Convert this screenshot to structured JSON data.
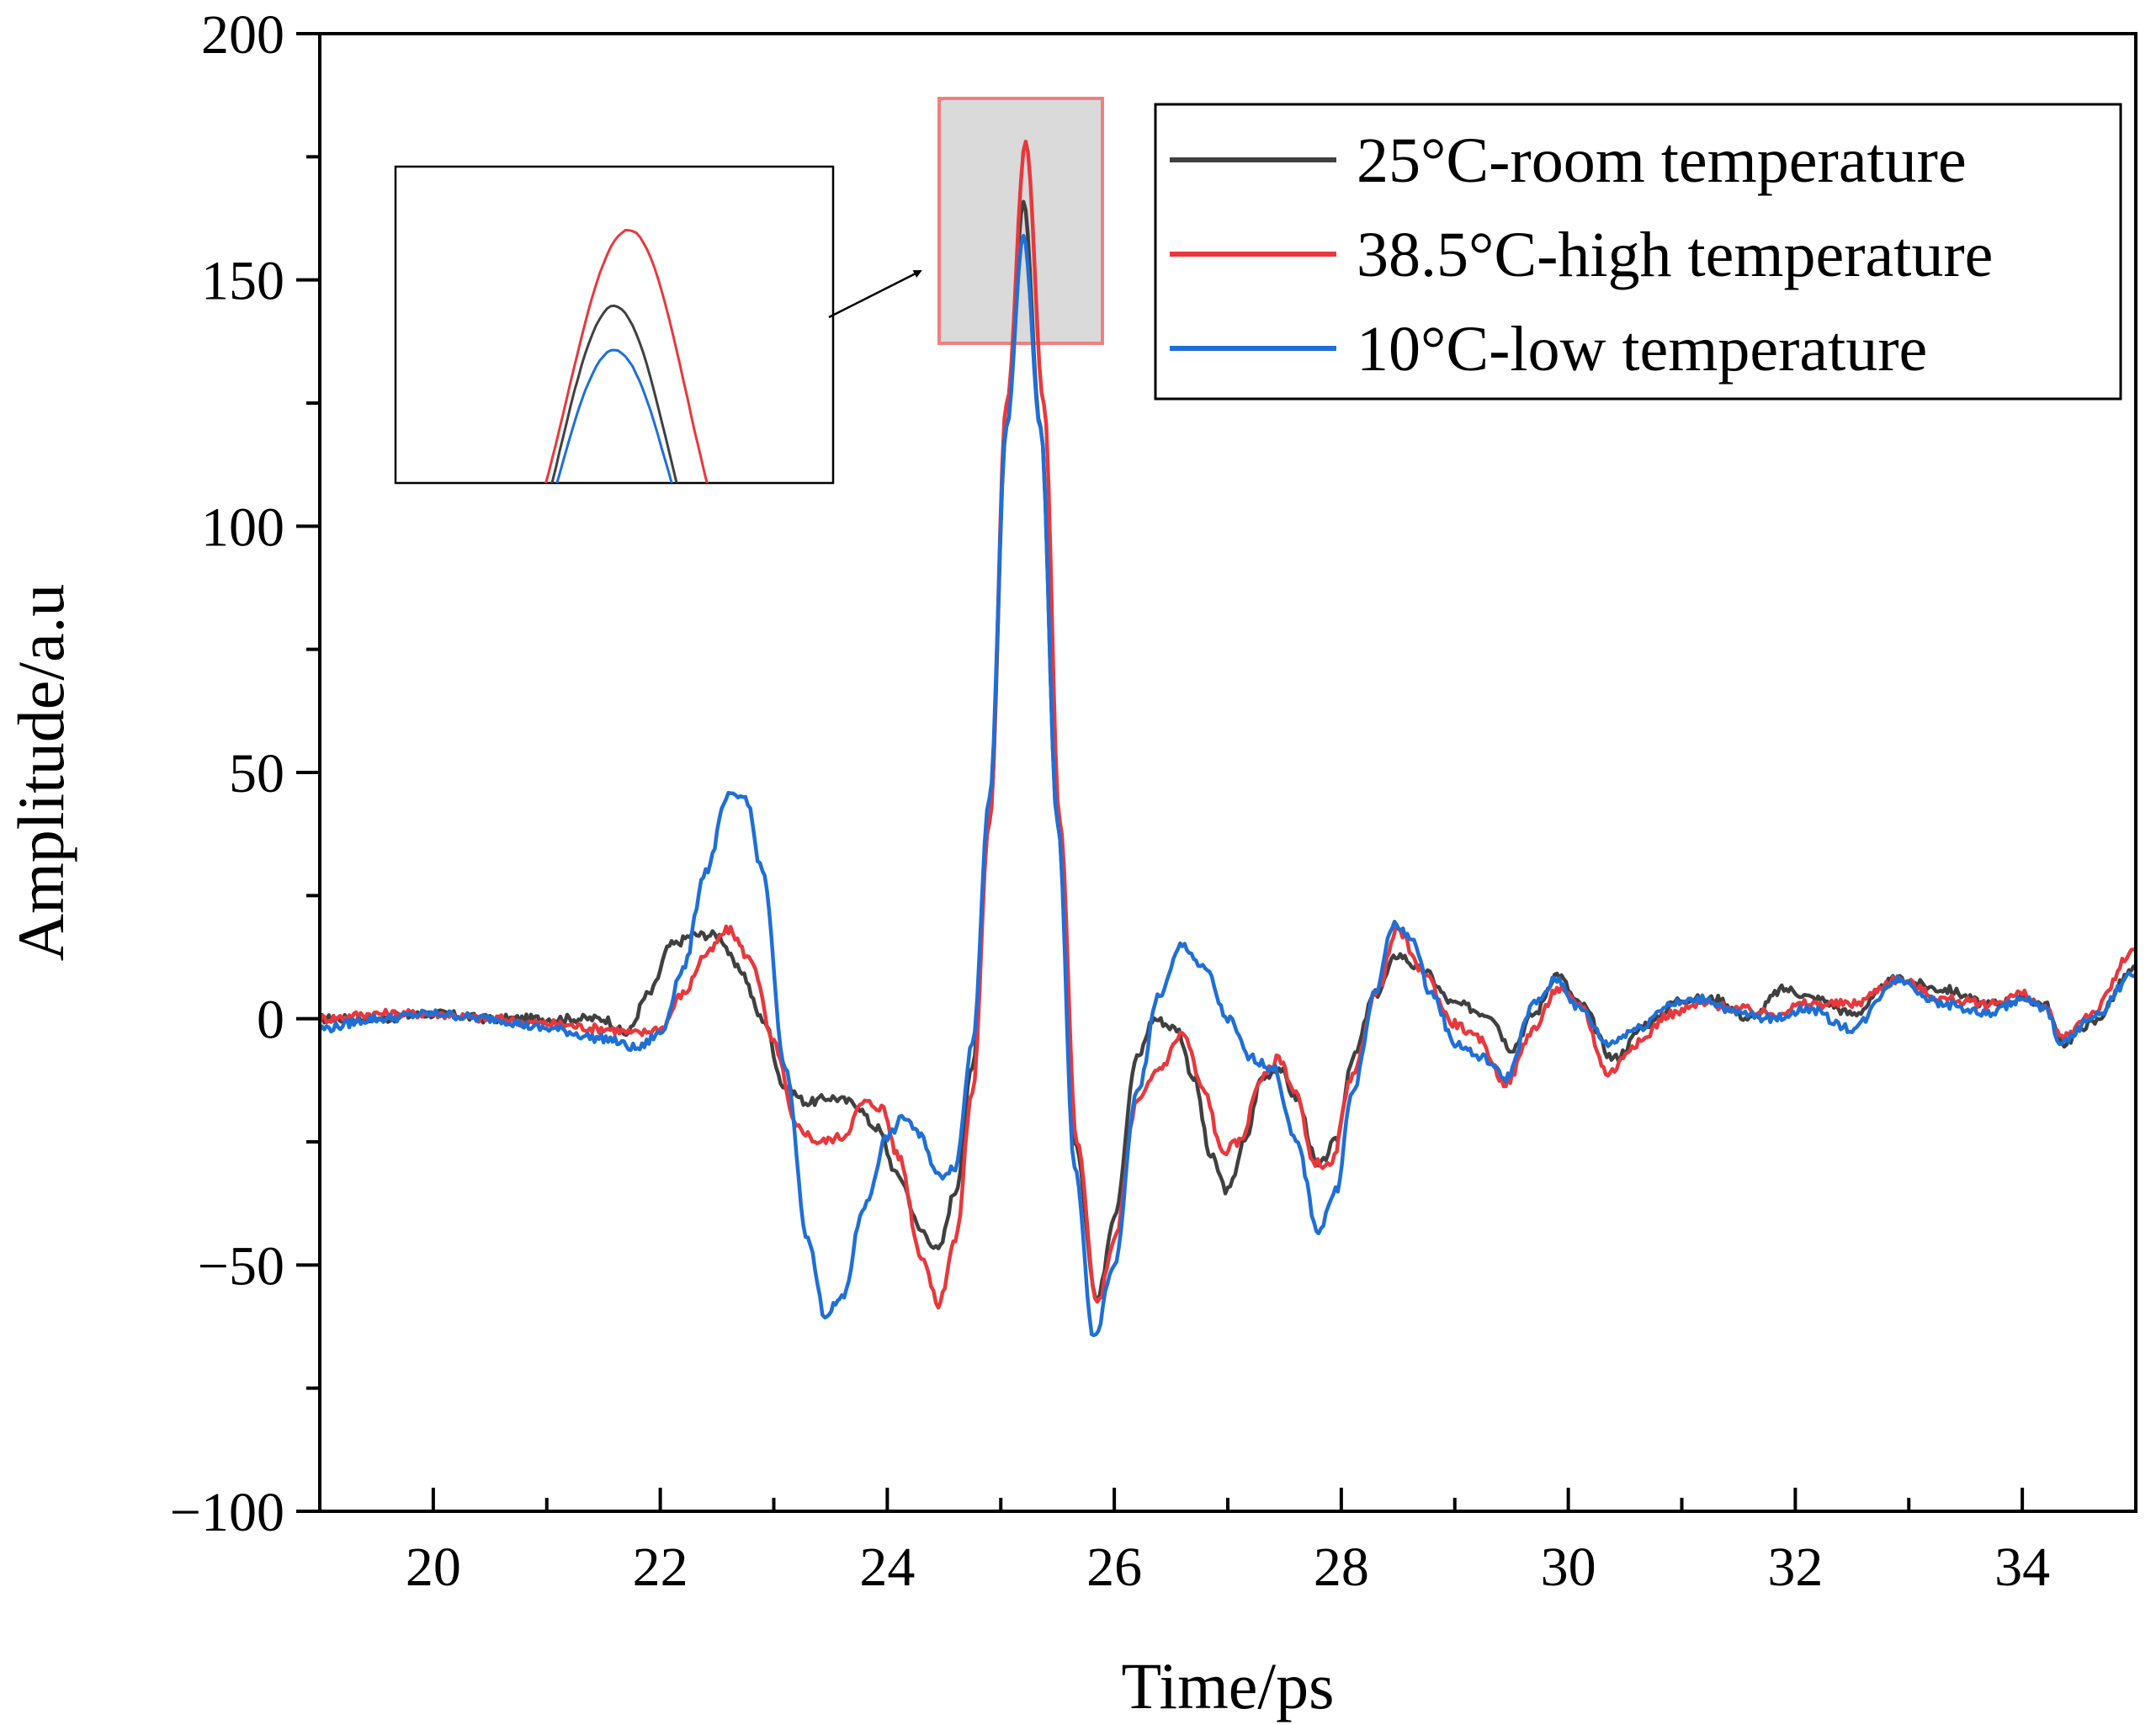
{
  "chart_data": {
    "type": "line",
    "title": "",
    "xlabel": "Time/ps",
    "ylabel": "Amplitude/a.u",
    "xlim": [
      19,
      35
    ],
    "ylim": [
      -100,
      200
    ],
    "x_major_ticks": [
      20,
      22,
      24,
      26,
      28,
      30,
      32,
      34
    ],
    "y_major_ticks": [
      -100,
      -50,
      0,
      50,
      100,
      150,
      200
    ],
    "x_tick_labels": [
      "20",
      "22",
      "24",
      "26",
      "28",
      "30",
      "32",
      "34"
    ],
    "y_tick_labels": [
      "−100",
      "−50",
      "0",
      "50",
      "100",
      "150",
      "200"
    ],
    "grid": false,
    "legend_position": "top-right",
    "series": [
      {
        "name": "25°C-room temperature",
        "color": "#404040",
        "points": [
          [
            19,
            0
          ],
          [
            19.5,
            0
          ],
          [
            20,
            1
          ],
          [
            20.5,
            0
          ],
          [
            21,
            0
          ],
          [
            21.5,
            0
          ],
          [
            21.7,
            -3
          ],
          [
            21.9,
            5
          ],
          [
            22.1,
            15
          ],
          [
            22.3,
            17
          ],
          [
            22.5,
            17
          ],
          [
            22.7,
            10
          ],
          [
            22.9,
            0
          ],
          [
            23.1,
            -14
          ],
          [
            23.3,
            -17
          ],
          [
            23.5,
            -16
          ],
          [
            23.7,
            -17
          ],
          [
            23.9,
            -22
          ],
          [
            24.1,
            -32
          ],
          [
            24.3,
            -43
          ],
          [
            24.45,
            -47
          ],
          [
            24.6,
            -35
          ],
          [
            24.75,
            -10
          ],
          [
            24.9,
            40
          ],
          [
            25.05,
            120
          ],
          [
            25.2,
            166
          ],
          [
            25.35,
            120
          ],
          [
            25.5,
            40
          ],
          [
            25.65,
            -25
          ],
          [
            25.85,
            -57
          ],
          [
            26.0,
            -40
          ],
          [
            26.2,
            -8
          ],
          [
            26.35,
            0
          ],
          [
            26.55,
            -2
          ],
          [
            26.7,
            -12
          ],
          [
            26.85,
            -28
          ],
          [
            27.0,
            -35
          ],
          [
            27.15,
            -25
          ],
          [
            27.3,
            -12
          ],
          [
            27.45,
            -10
          ],
          [
            27.6,
            -16
          ],
          [
            27.8,
            -30
          ],
          [
            27.95,
            -25
          ],
          [
            28.1,
            -8
          ],
          [
            28.3,
            5
          ],
          [
            28.5,
            13
          ],
          [
            28.7,
            10
          ],
          [
            29.0,
            3
          ],
          [
            29.3,
            1
          ],
          [
            29.5,
            -6
          ],
          [
            29.7,
            1
          ],
          [
            29.9,
            9
          ],
          [
            30.1,
            3
          ],
          [
            30.4,
            -8
          ],
          [
            30.7,
            -1
          ],
          [
            31.0,
            4
          ],
          [
            31.3,
            4
          ],
          [
            31.6,
            0
          ],
          [
            31.9,
            6
          ],
          [
            32.2,
            4
          ],
          [
            32.5,
            1
          ],
          [
            32.9,
            8
          ],
          [
            33.3,
            6
          ],
          [
            33.7,
            3
          ],
          [
            34.0,
            4
          ],
          [
            34.2,
            3
          ],
          [
            34.35,
            -5
          ],
          [
            34.6,
            -1
          ],
          [
            35,
            10
          ]
        ]
      },
      {
        "name": "38.5°C-high temperature",
        "color": "#e8383d",
        "points": [
          [
            19,
            0
          ],
          [
            19.5,
            1
          ],
          [
            20,
            1
          ],
          [
            20.5,
            0
          ],
          [
            21,
            -1
          ],
          [
            21.5,
            -2
          ],
          [
            21.8,
            -3
          ],
          [
            22.0,
            -2
          ],
          [
            22.2,
            5
          ],
          [
            22.4,
            13
          ],
          [
            22.6,
            18
          ],
          [
            22.8,
            12
          ],
          [
            23.0,
            -5
          ],
          [
            23.2,
            -22
          ],
          [
            23.4,
            -25
          ],
          [
            23.6,
            -24
          ],
          [
            23.8,
            -17
          ],
          [
            23.95,
            -18
          ],
          [
            24.1,
            -28
          ],
          [
            24.3,
            -48
          ],
          [
            24.45,
            -58
          ],
          [
            24.6,
            -45
          ],
          [
            24.75,
            -15
          ],
          [
            24.9,
            40
          ],
          [
            25.05,
            125
          ],
          [
            25.22,
            178
          ],
          [
            25.38,
            125
          ],
          [
            25.52,
            40
          ],
          [
            25.67,
            -25
          ],
          [
            25.85,
            -58
          ],
          [
            26.0,
            -45
          ],
          [
            26.2,
            -17
          ],
          [
            26.4,
            -10
          ],
          [
            26.6,
            -3
          ],
          [
            26.8,
            -15
          ],
          [
            26.95,
            -27
          ],
          [
            27.1,
            -25
          ],
          [
            27.3,
            -12
          ],
          [
            27.45,
            -8
          ],
          [
            27.6,
            -15
          ],
          [
            27.75,
            -29
          ],
          [
            27.9,
            -30
          ],
          [
            28.1,
            -12
          ],
          [
            28.3,
            5
          ],
          [
            28.5,
            18
          ],
          [
            28.7,
            10
          ],
          [
            29.0,
            -1
          ],
          [
            29.2,
            -4
          ],
          [
            29.45,
            -13
          ],
          [
            29.7,
            -2
          ],
          [
            29.9,
            6
          ],
          [
            30.1,
            3
          ],
          [
            30.35,
            -11
          ],
          [
            30.6,
            -5
          ],
          [
            30.9,
            1
          ],
          [
            31.2,
            3
          ],
          [
            31.5,
            2
          ],
          [
            31.8,
            1
          ],
          [
            32.1,
            3
          ],
          [
            32.5,
            3
          ],
          [
            32.9,
            8
          ],
          [
            33.3,
            4
          ],
          [
            33.7,
            3
          ],
          [
            34.0,
            5
          ],
          [
            34.2,
            2
          ],
          [
            34.35,
            -4
          ],
          [
            34.6,
            1
          ],
          [
            35,
            14
          ]
        ]
      },
      {
        "name": "10°C-low temperature",
        "color": "#1f6fd6",
        "points": [
          [
            19,
            -2
          ],
          [
            19.5,
            0
          ],
          [
            20,
            1
          ],
          [
            20.5,
            0
          ],
          [
            21,
            -2
          ],
          [
            21.5,
            -4
          ],
          [
            21.8,
            -6
          ],
          [
            22.0,
            -3
          ],
          [
            22.2,
            10
          ],
          [
            22.4,
            30
          ],
          [
            22.6,
            45
          ],
          [
            22.75,
            45
          ],
          [
            22.9,
            30
          ],
          [
            23.1,
            -10
          ],
          [
            23.3,
            -45
          ],
          [
            23.45,
            -60
          ],
          [
            23.6,
            -57
          ],
          [
            23.8,
            -38
          ],
          [
            24.0,
            -24
          ],
          [
            24.15,
            -20
          ],
          [
            24.3,
            -24
          ],
          [
            24.45,
            -32
          ],
          [
            24.6,
            -30
          ],
          [
            24.75,
            -5
          ],
          [
            24.9,
            45
          ],
          [
            25.05,
            120
          ],
          [
            25.2,
            159
          ],
          [
            25.35,
            120
          ],
          [
            25.5,
            40
          ],
          [
            25.65,
            -30
          ],
          [
            25.82,
            -65
          ],
          [
            26.0,
            -50
          ],
          [
            26.2,
            -15
          ],
          [
            26.4,
            5
          ],
          [
            26.6,
            15
          ],
          [
            26.8,
            10
          ],
          [
            27.0,
            0
          ],
          [
            27.2,
            -8
          ],
          [
            27.4,
            -10
          ],
          [
            27.6,
            -25
          ],
          [
            27.8,
            -43
          ],
          [
            27.95,
            -35
          ],
          [
            28.1,
            -15
          ],
          [
            28.3,
            5
          ],
          [
            28.45,
            19
          ],
          [
            28.6,
            17
          ],
          [
            28.8,
            5
          ],
          [
            29.0,
            -5
          ],
          [
            29.25,
            -8
          ],
          [
            29.45,
            -12
          ],
          [
            29.7,
            3
          ],
          [
            29.9,
            8
          ],
          [
            30.1,
            2
          ],
          [
            30.35,
            -5
          ],
          [
            30.6,
            -2
          ],
          [
            30.9,
            3
          ],
          [
            31.2,
            4
          ],
          [
            31.5,
            1
          ],
          [
            31.8,
            0
          ],
          [
            32.1,
            2
          ],
          [
            32.5,
            -2
          ],
          [
            32.9,
            8
          ],
          [
            33.3,
            3
          ],
          [
            33.7,
            1
          ],
          [
            34.0,
            4
          ],
          [
            34.2,
            2
          ],
          [
            34.35,
            -5
          ],
          [
            34.6,
            0
          ],
          [
            35,
            9
          ]
        ]
      }
    ],
    "inset": {
      "description": "zoomed view of peak near 25.2 ps",
      "xlim": [
        24.9,
        25.5
      ],
      "ylim": [
        138,
        188
      ]
    }
  }
}
